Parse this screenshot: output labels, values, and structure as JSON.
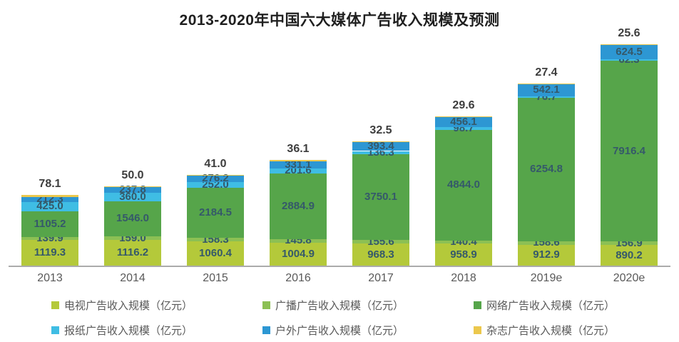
{
  "title": "2013-2020年中国六大媒体广告收入规模及预测",
  "chart_data": {
    "type": "bar",
    "stacked": true,
    "unit": "亿元",
    "categories": [
      "2013",
      "2014",
      "2015",
      "2016",
      "2017",
      "2018",
      "2019e",
      "2020e"
    ],
    "series": [
      {
        "id": "tv",
        "name": "电视广告收入规模（亿元）",
        "color": "#b4c93a",
        "label_outside": false,
        "values": [
          1119.3,
          1116.2,
          1060.4,
          1004.9,
          968.3,
          958.9,
          912.9,
          890.2
        ]
      },
      {
        "id": "radio",
        "name": "广播广告收入规模（亿元）",
        "color": "#8cc054",
        "label_outside": false,
        "values": [
          139.9,
          159.0,
          158.3,
          145.8,
          155.6,
          140.4,
          158.6,
          156.9
        ]
      },
      {
        "id": "network",
        "name": "网络广告收入规模（亿元）",
        "color": "#56a54a",
        "label_outside": false,
        "values": [
          1105.2,
          1546.0,
          2184.5,
          2884.9,
          3750.1,
          4844.0,
          6254.8,
          7916.4
        ]
      },
      {
        "id": "newspaper",
        "name": "报纸广告收入规模（亿元）",
        "color": "#3fbde4",
        "label_outside": false,
        "values": [
          425.0,
          360.0,
          252.0,
          201.6,
          136.3,
          98.7,
          76.7,
          62.3
        ]
      },
      {
        "id": "outdoor",
        "name": "户外广告收入规模（亿元）",
        "color": "#2d97d3",
        "label_outside": false,
        "values": [
          212.3,
          237.8,
          276.2,
          331.1,
          393.4,
          456.1,
          542.1,
          624.5
        ]
      },
      {
        "id": "magazine",
        "name": "杂志广告收入规模（亿元）",
        "color": "#ecc84d",
        "label_outside": true,
        "values": [
          78.1,
          50.0,
          41.0,
          36.1,
          32.5,
          29.6,
          27.4,
          25.6
        ]
      }
    ],
    "legend_order": [
      "tv",
      "radio",
      "network",
      "newspaper",
      "outdoor",
      "magazine"
    ],
    "legend_position": "bottom",
    "grid": false,
    "value_label_decimals": 1
  }
}
